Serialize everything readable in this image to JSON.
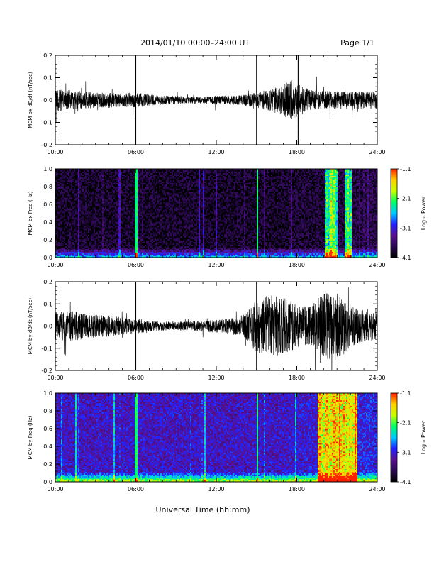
{
  "header": {
    "date_range": "2014/01/10  00:00–24:00 UT",
    "page": "Page 1/1"
  },
  "x_axis_title": "Universal Time (hh:mm)",
  "colorbar": {
    "label": "Log₁₀ Power",
    "stops": [
      "#000000",
      "#2a0a50",
      "#5a108f",
      "#2222ff",
      "#00c8ff",
      "#00ff66",
      "#c8ff00",
      "#ffd000",
      "#ff2000"
    ]
  },
  "chart_data": [
    {
      "type": "line",
      "ylabel": "MCM bx dB/dt (nT/sec)",
      "xlim": [
        0,
        24
      ],
      "ylim": [
        -0.2,
        0.2
      ],
      "x_tick_labels": [
        "00:00",
        "06:00",
        "12:00",
        "18:00",
        "24:00"
      ],
      "y_tick_labels": [
        "-0.2",
        "-0.1",
        "0.0",
        "0.1",
        "0.2"
      ],
      "y_tick_values": [
        -0.2,
        -0.1,
        0.0,
        0.1,
        0.2
      ],
      "envelope": {
        "x_hours": [
          0,
          1,
          2,
          3,
          4,
          5,
          6,
          7,
          8,
          9,
          10,
          11,
          12,
          13,
          14,
          15,
          16,
          17,
          17.5,
          18,
          18.5,
          19,
          20,
          21,
          22,
          23,
          24
        ],
        "amplitude": [
          0.05,
          0.045,
          0.04,
          0.035,
          0.035,
          0.03,
          0.035,
          0.025,
          0.02,
          0.02,
          0.015,
          0.015,
          0.02,
          0.02,
          0.025,
          0.035,
          0.05,
          0.07,
          0.09,
          0.08,
          0.06,
          0.045,
          0.04,
          0.04,
          0.04,
          0.04,
          0.04
        ]
      },
      "spikes_hours": [
        6.0,
        15.0,
        18.1
      ],
      "spike_values": [
        0.2,
        0.2,
        0.2
      ]
    },
    {
      "type": "heatmap",
      "ylabel": "MCM bx Freq (Hz)",
      "xlim": [
        0,
        24
      ],
      "ylim": [
        0.0,
        1.0
      ],
      "x_tick_labels": [
        "00:00",
        "06:00",
        "12:00",
        "18:00",
        "24:00"
      ],
      "y_tick_labels": [
        "0.0",
        "0.2",
        "0.4",
        "0.6",
        "0.8",
        "1.0"
      ],
      "y_tick_values": [
        0.0,
        0.2,
        0.4,
        0.6,
        0.8,
        1.0
      ],
      "color_range": [
        -4.1,
        -1.1
      ],
      "colorbar_ticks": [
        "-1.1",
        "-2.1",
        "-3.1",
        "-4.1"
      ],
      "colorbar_values": [
        -1.1,
        -2.1,
        -3.1,
        -4.1
      ],
      "bright_bands_hours": [
        6.0,
        15.0
      ],
      "active_intervals_hours": [
        [
          20.0,
          21.0
        ],
        [
          21.5,
          22.0
        ]
      ],
      "baseline_level": -3.9
    },
    {
      "type": "line",
      "ylabel": "MCM by dB/dt (nT/sec)",
      "xlim": [
        0,
        24
      ],
      "ylim": [
        -0.2,
        0.2
      ],
      "x_tick_labels": [
        "00:00",
        "06:00",
        "12:00",
        "18:00",
        "24:00"
      ],
      "y_tick_labels": [
        "-0.2",
        "-0.1",
        "0.0",
        "0.1",
        "0.2"
      ],
      "y_tick_values": [
        -0.2,
        -0.1,
        0.0,
        0.1,
        0.2
      ],
      "envelope": {
        "x_hours": [
          0,
          1,
          2,
          3,
          4,
          5,
          6,
          7,
          8,
          9,
          10,
          11,
          12,
          13,
          14,
          15,
          16,
          17,
          18,
          19,
          20,
          21,
          22,
          23,
          24
        ],
        "amplitude": [
          0.06,
          0.07,
          0.06,
          0.05,
          0.05,
          0.04,
          0.035,
          0.025,
          0.02,
          0.02,
          0.02,
          0.025,
          0.03,
          0.035,
          0.05,
          0.12,
          0.14,
          0.13,
          0.1,
          0.09,
          0.15,
          0.16,
          0.1,
          0.07,
          0.06
        ]
      },
      "spikes_hours": [
        6.0,
        15.0
      ],
      "spike_values": [
        0.2,
        0.2
      ]
    },
    {
      "type": "heatmap",
      "ylabel": "MCM by Freq (Hz)",
      "xlim": [
        0,
        24
      ],
      "ylim": [
        0.0,
        1.0
      ],
      "x_tick_labels": [
        "00:00",
        "06:00",
        "12:00",
        "18:00",
        "24:00"
      ],
      "y_tick_labels": [
        "0.0",
        "0.2",
        "0.4",
        "0.6",
        "0.8",
        "1.0"
      ],
      "y_tick_values": [
        0.0,
        0.2,
        0.4,
        0.6,
        0.8,
        1.0
      ],
      "color_range": [
        -4.1,
        -1.1
      ],
      "colorbar_ticks": [
        "-1.1",
        "-2.1",
        "-3.1",
        "-4.1"
      ],
      "colorbar_values": [
        -1.1,
        -2.1,
        -3.1,
        -4.1
      ],
      "bright_bands_hours": [
        6.0,
        15.0
      ],
      "active_intervals_hours": [
        [
          19.5,
          22.5
        ]
      ],
      "baseline_level": -3.2
    }
  ]
}
